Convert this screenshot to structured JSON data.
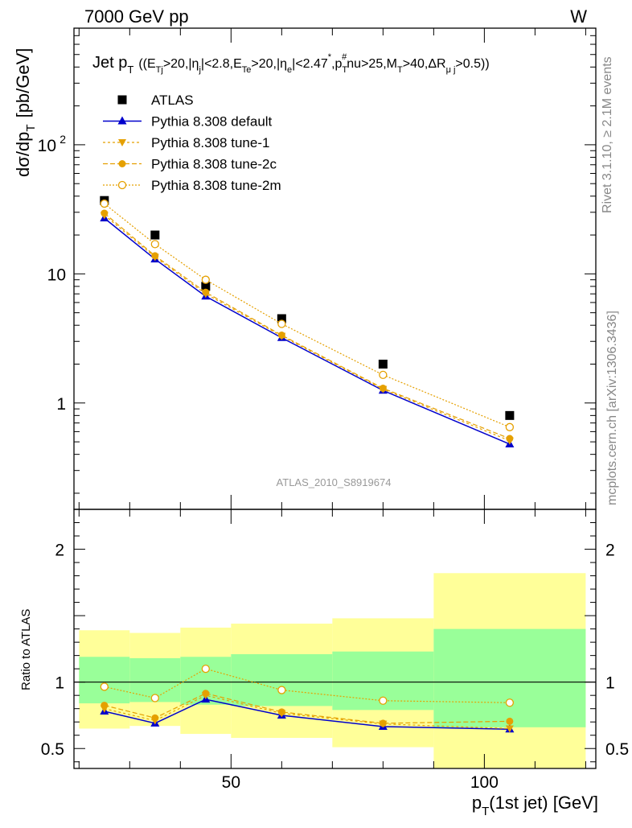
{
  "header": {
    "left": "7000 GeV pp",
    "right": "W"
  },
  "plot_title": {
    "prefix": "Jet p",
    "sub1": "T",
    "cuts": "((E",
    "s1": "Tj",
    "t2": ">20,|η",
    "s2": "j",
    "t3": "|<2.8,E",
    "s3": "Te",
    "t4": ">20,|η",
    "s4": "e",
    "t5": "|<2.47",
    "sup5": "*",
    "t6": ",p",
    "s6": "T",
    "sup6": "#",
    "t7": "nu>25,M",
    "s7": "T",
    "t8": ">40,ΔR",
    "s8": "μ j",
    "t9": ">0.5))"
  },
  "side_labels": {
    "rivet": "Rivet 3.1.10, ≥ 2.1M events",
    "mcplots": "mcplots.cern.ch [arXiv:1306.3436]"
  },
  "watermark": "ATLAS_2010_S8919674",
  "colors": {
    "default": "#0000cc",
    "tune": "#e5a000",
    "band_inner": "#99ff99",
    "band_outer": "#ffff99"
  },
  "chart_data": [
    {
      "type": "line",
      "panel": "main",
      "ylabel": "dσ/dp",
      "ylabel_sub": "T",
      "ylabel_unit": "[pb/GeV]",
      "yscale": "log",
      "ylim": [
        0.15,
        800
      ],
      "xlim": [
        19,
        122
      ],
      "yticks": [
        {
          "value": 1,
          "label": "1"
        },
        {
          "value": 10,
          "label": "10"
        },
        {
          "value": 100,
          "label": "10",
          "sup": "2"
        }
      ],
      "x": [
        25,
        35,
        45,
        60,
        80,
        105
      ],
      "series": [
        {
          "name": "ATLAS",
          "marker": "square",
          "values": [
            37,
            20,
            8,
            4.5,
            2.0,
            0.8
          ]
        },
        {
          "name": "Pythia 8.308 default",
          "marker": "triangle-up",
          "values": [
            27,
            13,
            6.7,
            3.2,
            1.25,
            0.48
          ]
        },
        {
          "name": "Pythia 8.308 tune-1",
          "marker": "triangle-down",
          "values": [
            28.5,
            13.5,
            7.0,
            3.3,
            1.28,
            0.51
          ]
        },
        {
          "name": "Pythia 8.308 tune-2c",
          "marker": "circle",
          "values": [
            29.5,
            13.8,
            7.2,
            3.35,
            1.3,
            0.53
          ]
        },
        {
          "name": "Pythia 8.308 tune-2m",
          "marker": "circle-open",
          "values": [
            35,
            17,
            9,
            4.1,
            1.65,
            0.65
          ]
        }
      ]
    },
    {
      "type": "line",
      "panel": "ratio",
      "ylabel": "Ratio to ATLAS",
      "xlabel": "p",
      "xlabel_sub": "T",
      "xlabel_rest": "(1st jet) [GeV]",
      "ylim": [
        0.35,
        2.3
      ],
      "xlim": [
        19,
        122
      ],
      "yticks": [
        0.5,
        1,
        2
      ],
      "xticks": [
        {
          "value": 50,
          "label": "50"
        },
        {
          "value": 100,
          "label": "100"
        }
      ],
      "bands": [
        {
          "x0": 20,
          "x1": 30,
          "inner": [
            0.84,
            1.19
          ],
          "outer": [
            0.65,
            1.39
          ]
        },
        {
          "x0": 30,
          "x1": 40,
          "inner": [
            0.85,
            1.18
          ],
          "outer": [
            0.67,
            1.37
          ]
        },
        {
          "x0": 40,
          "x1": 50,
          "inner": [
            0.83,
            1.19
          ],
          "outer": [
            0.61,
            1.41
          ]
        },
        {
          "x0": 50,
          "x1": 70,
          "inner": [
            0.82,
            1.21
          ],
          "outer": [
            0.58,
            1.44
          ]
        },
        {
          "x0": 70,
          "x1": 90,
          "inner": [
            0.79,
            1.23
          ],
          "outer": [
            0.51,
            1.48
          ]
        },
        {
          "x0": 90,
          "x1": 120,
          "inner": [
            0.66,
            1.4
          ],
          "outer": [
            0.34,
            1.82
          ]
        }
      ],
      "x": [
        25,
        35,
        45,
        60,
        80,
        105
      ],
      "series": [
        {
          "name": "Pythia 8.308 default",
          "marker": "triangle-up",
          "values": [
            0.78,
            0.69,
            0.87,
            0.75,
            0.665,
            0.645
          ]
        },
        {
          "name": "Pythia 8.308 tune-1",
          "marker": "triangle-down",
          "values": [
            0.8,
            0.71,
            0.9,
            0.765,
            0.685,
            0.65
          ]
        },
        {
          "name": "Pythia 8.308 tune-2c",
          "marker": "circle",
          "values": [
            0.825,
            0.73,
            0.915,
            0.775,
            0.69,
            0.705
          ]
        },
        {
          "name": "Pythia 8.308 tune-2m",
          "marker": "circle-open",
          "values": [
            0.965,
            0.88,
            1.1,
            0.94,
            0.86,
            0.845
          ]
        }
      ]
    }
  ]
}
